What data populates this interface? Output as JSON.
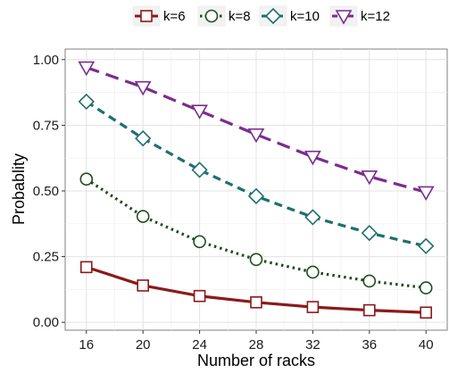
{
  "chart_data": {
    "type": "line",
    "xlabel": "Number of racks",
    "ylabel": "Probablity",
    "x": [
      16,
      20,
      24,
      28,
      32,
      36,
      40
    ],
    "xlim": [
      14.5,
      41.5
    ],
    "ylim": [
      -0.03,
      1.04
    ],
    "xticks": [
      "16",
      "20",
      "24",
      "28",
      "32",
      "36",
      "40"
    ],
    "yticks": [
      "0.00",
      "0.25",
      "0.50",
      "0.75",
      "1.00"
    ],
    "ytick_values": [
      0,
      0.25,
      0.5,
      0.75,
      1.0
    ],
    "grid": true,
    "legend_position": "top",
    "series": [
      {
        "name": "k=6",
        "color": "#8b1a1a",
        "dash": "solid",
        "marker": "square",
        "values": [
          0.21,
          0.14,
          0.1,
          0.076,
          0.058,
          0.046,
          0.037
        ]
      },
      {
        "name": "k=8",
        "color": "#1f4d1f",
        "dash": "dotted",
        "marker": "circle",
        "values": [
          0.545,
          0.403,
          0.307,
          0.239,
          0.191,
          0.157,
          0.131
        ]
      },
      {
        "name": "k=10",
        "color": "#1e6f6f",
        "dash": "dashed",
        "marker": "diamond",
        "values": [
          0.84,
          0.7,
          0.58,
          0.48,
          0.4,
          0.34,
          0.29
        ]
      },
      {
        "name": "k=12",
        "color": "#7b2d8e",
        "dash": "longdash",
        "marker": "triangle-down",
        "values": [
          0.97,
          0.895,
          0.805,
          0.715,
          0.63,
          0.555,
          0.495
        ]
      }
    ]
  }
}
